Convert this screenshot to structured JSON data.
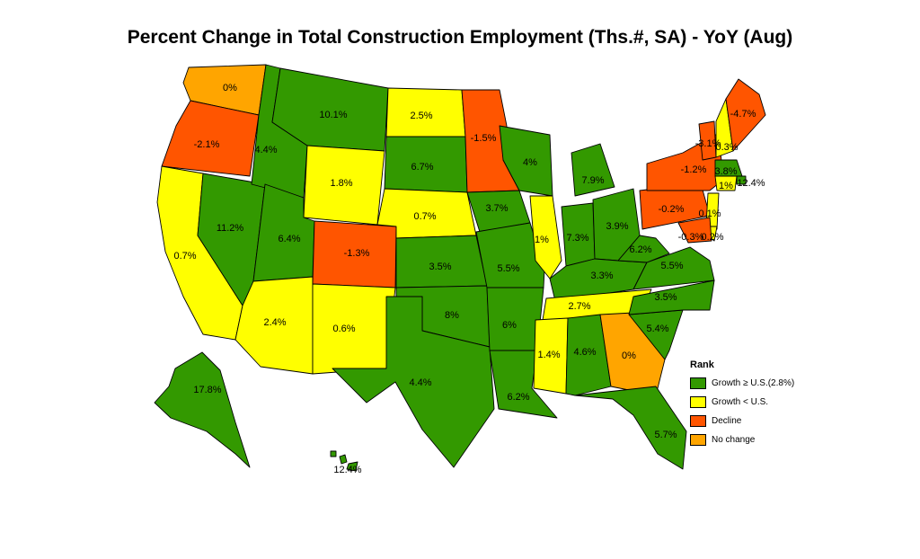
{
  "title": "Percent Change in Total Construction Employment (Ths.#, SA) - YoY (Aug)",
  "colors": {
    "growth_above": "#339900",
    "growth_below": "#ffff00",
    "decline": "#ff5500",
    "no_change": "#ffa500"
  },
  "legend": {
    "title": "Rank",
    "items": [
      {
        "label": "Growth ≥ U.S.(2.8%)",
        "category": "growth_above"
      },
      {
        "label": "Growth < U.S.",
        "category": "growth_below"
      },
      {
        "label": "Decline",
        "category": "decline"
      },
      {
        "label": "No change",
        "category": "no_change"
      }
    ]
  },
  "states": [
    {
      "id": "WA",
      "value": "0%",
      "category": "no_change"
    },
    {
      "id": "OR",
      "value": "-2.1%",
      "category": "decline"
    },
    {
      "id": "CA",
      "value": "0.7%",
      "category": "growth_below"
    },
    {
      "id": "NV",
      "value": "11.2%",
      "category": "growth_above"
    },
    {
      "id": "ID",
      "value": "4.4%",
      "category": "growth_above"
    },
    {
      "id": "MT",
      "value": "10.1%",
      "category": "growth_above"
    },
    {
      "id": "WY",
      "value": "1.8%",
      "category": "growth_below"
    },
    {
      "id": "UT",
      "value": "6.4%",
      "category": "growth_above"
    },
    {
      "id": "AZ",
      "value": "2.4%",
      "category": "growth_below"
    },
    {
      "id": "CO",
      "value": "-1.3%",
      "category": "decline"
    },
    {
      "id": "NM",
      "value": "0.6%",
      "category": "growth_below"
    },
    {
      "id": "ND",
      "value": "2.5%",
      "category": "growth_below"
    },
    {
      "id": "SD",
      "value": "6.7%",
      "category": "growth_above"
    },
    {
      "id": "NE",
      "value": "0.7%",
      "category": "growth_below"
    },
    {
      "id": "KS",
      "value": "3.5%",
      "category": "growth_above"
    },
    {
      "id": "OK",
      "value": "8%",
      "category": "growth_above"
    },
    {
      "id": "TX",
      "value": "4.4%",
      "category": "growth_above"
    },
    {
      "id": "MN",
      "value": "-1.5%",
      "category": "decline"
    },
    {
      "id": "IA",
      "value": "3.7%",
      "category": "growth_above"
    },
    {
      "id": "MO",
      "value": "5.5%",
      "category": "growth_above"
    },
    {
      "id": "AR",
      "value": "6%",
      "category": "growth_above"
    },
    {
      "id": "LA",
      "value": "6.2%",
      "category": "growth_above"
    },
    {
      "id": "WI",
      "value": "4%",
      "category": "growth_above"
    },
    {
      "id": "IL",
      "value": "1%",
      "category": "growth_below"
    },
    {
      "id": "MI",
      "value": "7.9%",
      "category": "growth_above"
    },
    {
      "id": "IN",
      "value": "7.3%",
      "category": "growth_above"
    },
    {
      "id": "OH",
      "value": "3.9%",
      "category": "growth_above"
    },
    {
      "id": "KY",
      "value": "3.3%",
      "category": "growth_above"
    },
    {
      "id": "TN",
      "value": "2.7%",
      "category": "growth_below"
    },
    {
      "id": "MS",
      "value": "1.4%",
      "category": "growth_below"
    },
    {
      "id": "AL",
      "value": "4.6%",
      "category": "growth_above"
    },
    {
      "id": "GA",
      "value": "0%",
      "category": "no_change"
    },
    {
      "id": "FL",
      "value": "5.7%",
      "category": "growth_above"
    },
    {
      "id": "SC",
      "value": "5.4%",
      "category": "growth_above"
    },
    {
      "id": "NC",
      "value": "3.5%",
      "category": "growth_above"
    },
    {
      "id": "VA",
      "value": "5.5%",
      "category": "growth_above"
    },
    {
      "id": "WV",
      "value": "6.2%",
      "category": "growth_above"
    },
    {
      "id": "PA",
      "value": "-0.2%",
      "category": "decline"
    },
    {
      "id": "NY",
      "value": "-1.2%",
      "category": "decline"
    },
    {
      "id": "VT",
      "value": "-3.1%",
      "category": "decline"
    },
    {
      "id": "NH",
      "value": "0.3%",
      "category": "growth_below"
    },
    {
      "id": "ME",
      "value": "-4.7%",
      "category": "decline"
    },
    {
      "id": "MA",
      "value": "3.8%",
      "category": "growth_above"
    },
    {
      "id": "RI",
      "value": "12.4%",
      "category": "growth_above"
    },
    {
      "id": "CT",
      "value": "1%",
      "category": "growth_below"
    },
    {
      "id": "NJ",
      "value": "0.1%",
      "category": "growth_below"
    },
    {
      "id": "DE",
      "value": "0.2%",
      "category": "growth_below"
    },
    {
      "id": "MD",
      "value": "-0.3%",
      "category": "decline"
    },
    {
      "id": "AK",
      "value": "17.8%",
      "category": "growth_above"
    },
    {
      "id": "HI",
      "value": "12.4%",
      "category": "growth_above"
    }
  ]
}
